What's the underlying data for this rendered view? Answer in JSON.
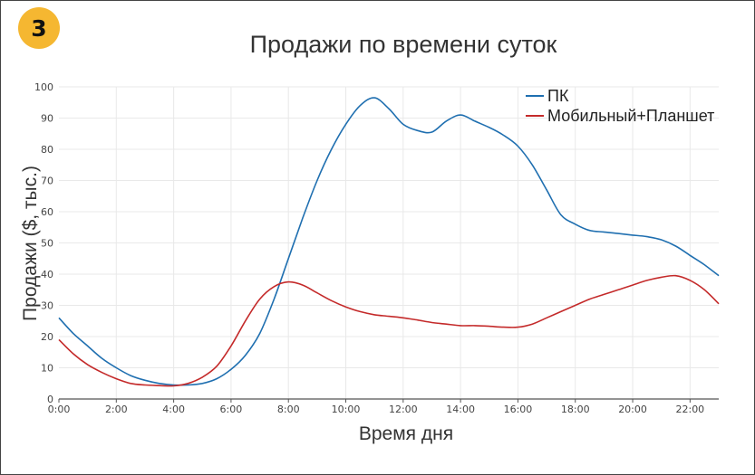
{
  "badge": {
    "number": "3",
    "color": "#f5b731"
  },
  "chart_data": {
    "type": "line",
    "title": "Продажи по времени суток",
    "xlabel": "Время дня",
    "ylabel": "Продажи ($, тыс.)",
    "xlim": [
      0,
      23
    ],
    "ylim": [
      0,
      100
    ],
    "x_ticks": [
      "0:00",
      "2:00",
      "4:00",
      "6:00",
      "8:00",
      "10:00",
      "12:00",
      "14:00",
      "16:00",
      "18:00",
      "20:00",
      "22:00"
    ],
    "x_tick_values": [
      0,
      2,
      4,
      6,
      8,
      10,
      12,
      14,
      16,
      18,
      20,
      22
    ],
    "y_ticks": [
      "0",
      "10",
      "20",
      "30",
      "40",
      "50",
      "60",
      "70",
      "80",
      "90",
      "100"
    ],
    "y_tick_values": [
      0,
      10,
      20,
      30,
      40,
      50,
      60,
      70,
      80,
      90,
      100
    ],
    "grid": true,
    "legend_position": "top-right",
    "x": [
      0,
      0.5,
      1,
      1.5,
      2,
      2.5,
      3,
      3.5,
      4,
      4.5,
      5,
      5.5,
      6,
      6.5,
      7,
      7.5,
      8,
      8.5,
      9,
      9.5,
      10,
      10.5,
      11,
      11.5,
      12,
      12.5,
      13,
      13.5,
      14,
      14.5,
      15,
      15.5,
      16,
      16.5,
      17,
      17.5,
      18,
      18.5,
      19,
      19.5,
      20,
      20.5,
      21,
      21.5,
      22,
      22.5,
      23
    ],
    "series": [
      {
        "name": "ПК",
        "color": "#1f6fb0",
        "values": [
          26,
          21,
          17,
          13,
          10,
          7.5,
          6,
          5,
          4.5,
          4.5,
          5,
          6.5,
          9.5,
          14,
          21,
          32,
          45,
          58,
          70,
          80,
          88,
          94,
          96.5,
          93,
          88,
          86,
          85.5,
          89,
          91,
          89,
          87,
          84.5,
          81,
          75,
          67,
          59,
          56,
          54,
          53.5,
          53,
          52.5,
          52,
          51,
          49,
          46,
          43,
          39.5
        ]
      },
      {
        "name": "Мобильный+Планшет",
        "color": "#c42a2a",
        "values": [
          19,
          14.5,
          11,
          8.5,
          6.5,
          5,
          4.5,
          4.3,
          4.2,
          5,
          7,
          10.5,
          17,
          25,
          32,
          36,
          37.5,
          36.5,
          34,
          31.5,
          29.5,
          28,
          27,
          26.5,
          26,
          25.3,
          24.5,
          24,
          23.5,
          23.5,
          23.3,
          23,
          23,
          24,
          26,
          28,
          30,
          32,
          33.5,
          35,
          36.5,
          38,
          39,
          39.5,
          38,
          35,
          30.5
        ]
      }
    ]
  }
}
